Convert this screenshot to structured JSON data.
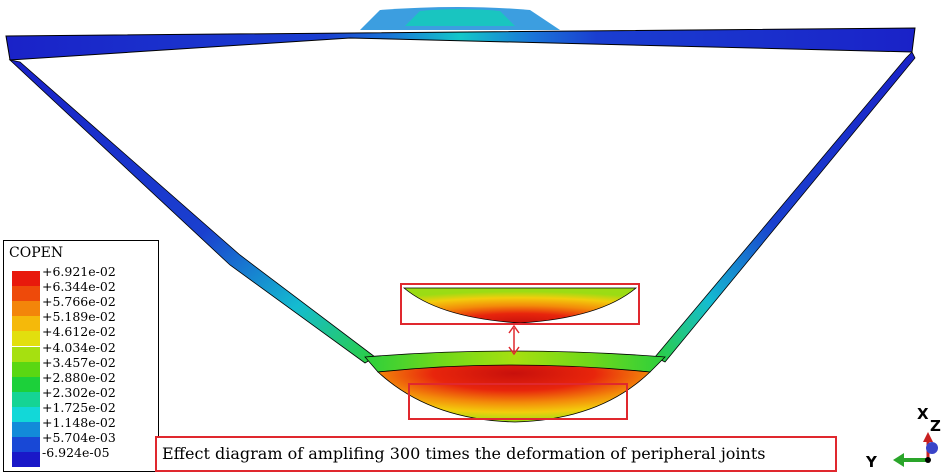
{
  "legend": {
    "title": "COPEN",
    "entries": [
      {
        "label": "+6.921e-02",
        "color": "#e8190c"
      },
      {
        "label": "+6.344e-02",
        "color": "#ee4a0a"
      },
      {
        "label": "+5.766e-02",
        "color": "#f3850a"
      },
      {
        "label": "+5.189e-02",
        "color": "#f5b90a"
      },
      {
        "label": "+4.612e-02",
        "color": "#e2df0e"
      },
      {
        "label": "+4.034e-02",
        "color": "#a6e010"
      },
      {
        "label": "+3.457e-02",
        "color": "#5ad712"
      },
      {
        "label": "+2.880e-02",
        "color": "#1cd03a"
      },
      {
        "label": "+2.302e-02",
        "color": "#15d495"
      },
      {
        "label": "+1.725e-02",
        "color": "#12d8d8"
      },
      {
        "label": "+1.148e-02",
        "color": "#128bd9"
      },
      {
        "label": "+5.704e-03",
        "color": "#1848d6"
      },
      {
        "label": "-6.924e-05",
        "color": "#1a18c8"
      }
    ]
  },
  "caption": "Effect diagram of amplifing 300 times the deformation of peripheral joints",
  "triad": {
    "x_label": "X",
    "z_label": "Z",
    "y_label": "Y"
  },
  "colors": {
    "highlight": "#e0282e"
  }
}
